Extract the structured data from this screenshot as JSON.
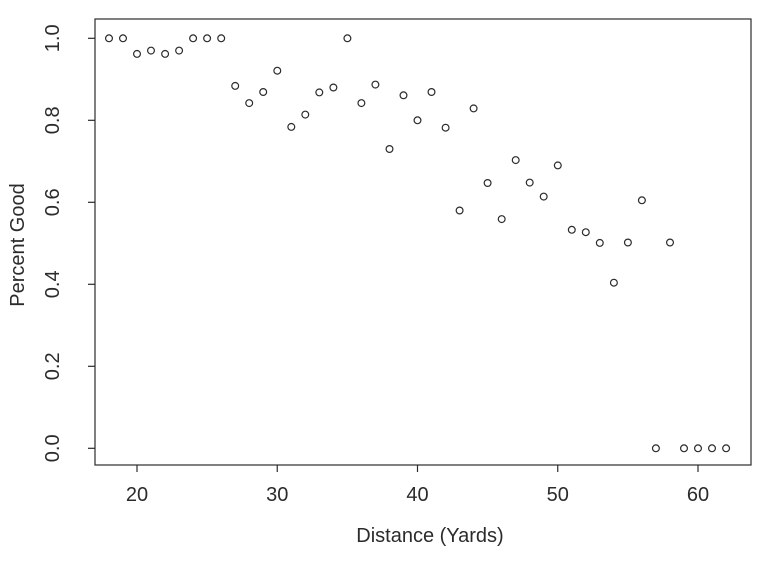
{
  "figure": {
    "background_color": "#ffffff",
    "axis_color": "#2b2b2b",
    "text_color": "#2b2b2b"
  },
  "chart_data": {
    "type": "scatter",
    "title": "",
    "xlabel": "Distance (Yards)",
    "ylabel": "Percent Good",
    "marker": "open-circle",
    "marker_color": "#2b2b2b",
    "grid": false,
    "legend": "none",
    "xlim": [
      17.0,
      63.8
    ],
    "ylim": [
      0.0,
      1.0
    ],
    "x_ticks": {
      "values": [
        20,
        30,
        40,
        50,
        60
      ],
      "labels": [
        "20",
        "30",
        "40",
        "50",
        "60"
      ]
    },
    "y_ticks": {
      "values": [
        0.0,
        0.2,
        0.4,
        0.6,
        0.8,
        1.0
      ],
      "labels": [
        "0.0",
        "0.2",
        "0.4",
        "0.6",
        "0.8",
        "1.0"
      ]
    },
    "x": [
      18,
      19,
      20,
      21,
      22,
      23,
      24,
      25,
      26,
      27,
      28,
      29,
      30,
      31,
      32,
      33,
      34,
      35,
      36,
      37,
      38,
      39,
      40,
      41,
      42,
      43,
      44,
      45,
      46,
      47,
      48,
      49,
      50,
      51,
      52,
      53,
      54,
      55,
      56,
      57,
      58,
      59,
      60,
      61,
      62
    ],
    "y": [
      1.0,
      1.0,
      0.962,
      0.97,
      0.962,
      0.97,
      1.0,
      1.0,
      1.0,
      0.884,
      0.842,
      0.869,
      0.921,
      0.784,
      0.814,
      0.868,
      0.88,
      1.0,
      0.842,
      0.887,
      0.73,
      0.861,
      0.8,
      0.869,
      0.782,
      0.58,
      0.829,
      0.647,
      0.559,
      0.703,
      0.648,
      0.614,
      0.69,
      0.533,
      0.527,
      0.501,
      0.404,
      0.502,
      0.605,
      0.0,
      0.502,
      0.0,
      0.0,
      0.0,
      0.0
    ]
  }
}
